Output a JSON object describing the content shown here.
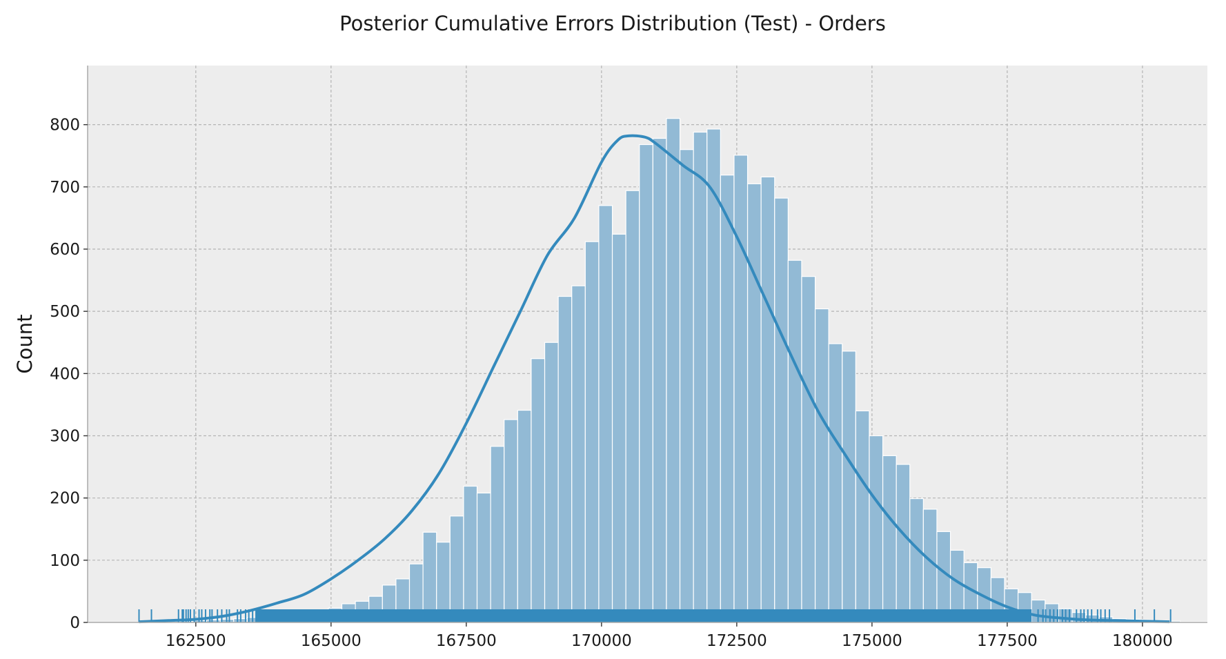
{
  "chart_data": {
    "type": "bar",
    "title": "Posterior Cumulative Errors Distribution (Test) - Orders",
    "xlabel": "",
    "ylabel": "Count",
    "xlim": [
      160500,
      181200
    ],
    "ylim": [
      0,
      895
    ],
    "x_ticks": [
      162500,
      165000,
      167500,
      170000,
      172500,
      175000,
      177500,
      180000
    ],
    "y_ticks": [
      0,
      100,
      200,
      300,
      400,
      500,
      600,
      700,
      800
    ],
    "grid": true,
    "bin_start": 161450,
    "bin_width": 250,
    "counts": [
      1,
      1,
      1,
      2,
      3,
      4,
      5,
      6,
      8,
      9,
      11,
      13,
      15,
      18,
      23,
      30,
      34,
      42,
      60,
      70,
      94,
      145,
      129,
      171,
      219,
      208,
      283,
      326,
      341,
      424,
      450,
      524,
      541,
      612,
      670,
      624,
      694,
      768,
      778,
      810,
      760,
      788,
      793,
      719,
      751,
      705,
      716,
      682,
      582,
      556,
      504,
      448,
      436,
      340,
      300,
      268,
      254,
      199,
      182,
      146,
      116,
      96,
      88,
      72,
      54,
      48,
      36,
      30,
      22,
      16,
      12,
      9,
      6,
      5,
      4,
      3,
      2,
      1,
      1
    ],
    "kde": [
      [
        161450,
        1
      ],
      [
        162000,
        3
      ],
      [
        162500,
        5
      ],
      [
        163000,
        10
      ],
      [
        163500,
        19
      ],
      [
        164000,
        31
      ],
      [
        164500,
        45
      ],
      [
        165000,
        70
      ],
      [
        165500,
        100
      ],
      [
        166000,
        135
      ],
      [
        166500,
        180
      ],
      [
        167000,
        240
      ],
      [
        167500,
        320
      ],
      [
        168000,
        410
      ],
      [
        168500,
        500
      ],
      [
        169000,
        590
      ],
      [
        169500,
        650
      ],
      [
        170000,
        740
      ],
      [
        170300,
        775
      ],
      [
        170500,
        782
      ],
      [
        170800,
        780
      ],
      [
        171000,
        770
      ],
      [
        171500,
        735
      ],
      [
        172000,
        700
      ],
      [
        172500,
        620
      ],
      [
        173000,
        525
      ],
      [
        173500,
        430
      ],
      [
        174000,
        340
      ],
      [
        174500,
        270
      ],
      [
        175000,
        205
      ],
      [
        175500,
        150
      ],
      [
        176000,
        105
      ],
      [
        176500,
        70
      ],
      [
        177000,
        45
      ],
      [
        177500,
        25
      ],
      [
        178000,
        12
      ],
      [
        178500,
        7
      ],
      [
        179000,
        4
      ],
      [
        179500,
        3
      ],
      [
        180000,
        2
      ],
      [
        180500,
        1
      ]
    ],
    "rug_sparse_x": [
      161450,
      161680,
      162180,
      162250,
      162270,
      162320,
      162360,
      162400,
      162470,
      162560,
      162610,
      162680,
      162760,
      162800,
      162900,
      162980,
      163070,
      163120,
      163270,
      163330,
      163420,
      163480,
      163550,
      178070,
      178160,
      178210,
      178290,
      178360,
      178430,
      178520,
      178580,
      178650,
      178780,
      178860,
      178920,
      178990,
      179060,
      179170,
      179230,
      179310,
      179390,
      179860,
      180220,
      180520
    ],
    "rug_dense_range": [
      163600,
      177950
    ],
    "colors": {
      "plot_background": "#ededed",
      "bar_fill": "#92bad5",
      "line": "#348abd",
      "grid": "#b4b4b4",
      "spine": "#aaaaaa"
    }
  }
}
